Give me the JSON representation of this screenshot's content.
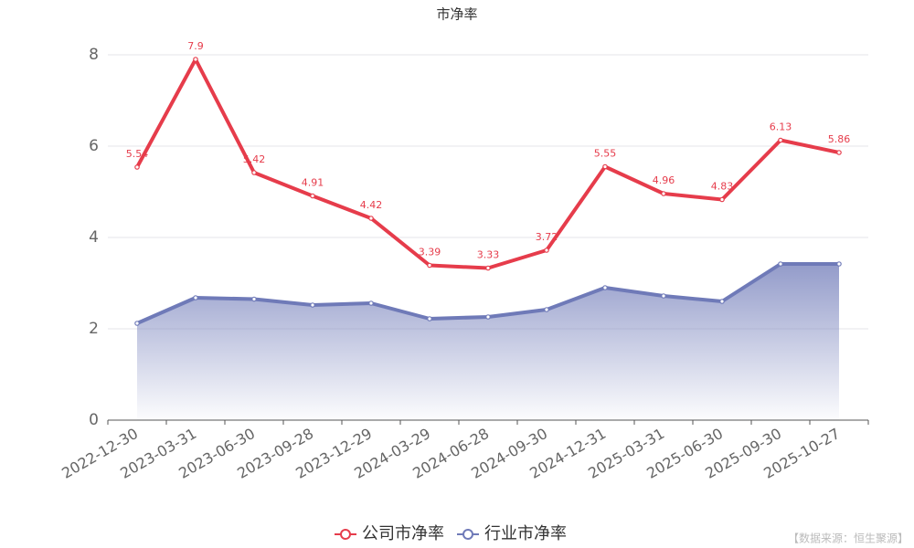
{
  "chart_data": {
    "type": "line",
    "title": "市净率",
    "categories": [
      "2022-12-30",
      "2023-03-31",
      "2023-06-30",
      "2023-09-28",
      "2023-12-29",
      "2024-03-29",
      "2024-06-28",
      "2024-09-30",
      "2024-12-31",
      "2025-03-31",
      "2025-06-30",
      "2025-09-30",
      "2025-10-27"
    ],
    "series": [
      {
        "name": "公司市净率",
        "color": "#e63c4b",
        "values": [
          5.54,
          7.9,
          5.42,
          4.91,
          4.42,
          3.39,
          3.33,
          3.72,
          5.55,
          4.96,
          4.83,
          6.13,
          5.86
        ]
      },
      {
        "name": "行业市净率",
        "color": "#6f7ab8",
        "area": true,
        "values": [
          2.12,
          2.68,
          2.65,
          2.52,
          2.56,
          2.22,
          2.26,
          2.42,
          2.9,
          2.72,
          2.6,
          3.42,
          3.42
        ]
      }
    ],
    "ylim": [
      0,
      8
    ],
    "yticks": [
      0,
      2,
      4,
      6,
      8
    ],
    "grid": true,
    "legend": "bottom",
    "source": "【数据来源：恒生聚源】"
  }
}
